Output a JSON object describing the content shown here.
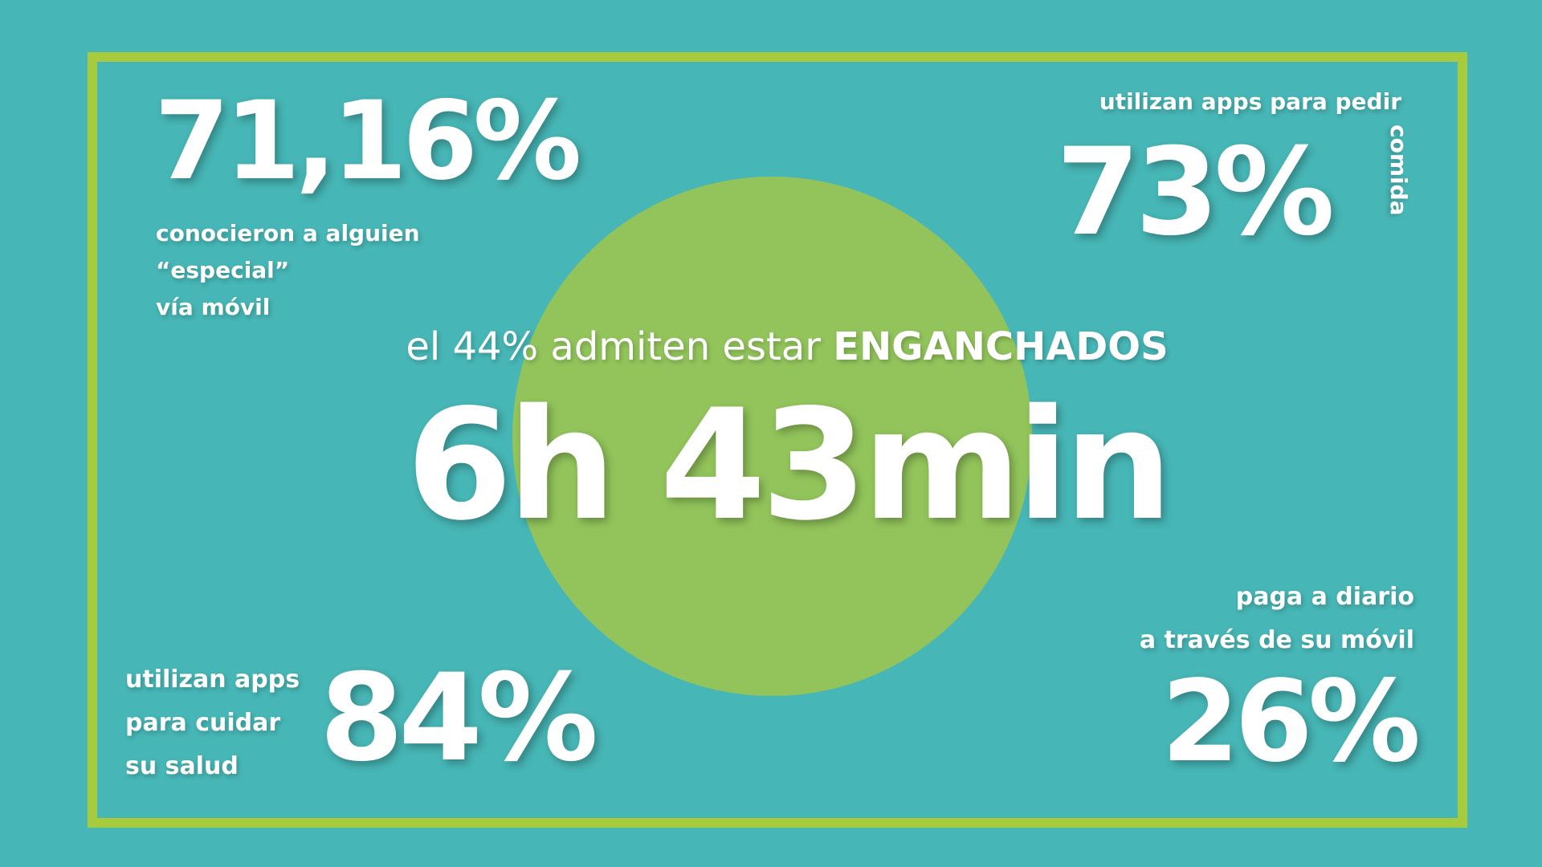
{
  "colors": {
    "background": "#47b6b6",
    "frame": "#a8cb3b",
    "circle": "#92c45b",
    "text": "#ffffff"
  },
  "stats": {
    "dating": {
      "value": "71,16%",
      "label_lines": [
        "conocieron a alguien",
        "“especial”",
        "vía móvil"
      ]
    },
    "food": {
      "value": "73%",
      "label": "utilizan apps para pedir",
      "label_vertical": "comida"
    },
    "hooked": {
      "headline_prefix": "el 44% admiten estar",
      "headline_emphasis": "ENGANCHADOS",
      "value": "6h 43min"
    },
    "health": {
      "value": "84%",
      "label_lines": [
        "utilizan apps",
        "para cuidar",
        "su salud"
      ]
    },
    "payments": {
      "value": "26%",
      "label_lines": [
        "paga a diario",
        "a través de su móvil"
      ]
    }
  }
}
